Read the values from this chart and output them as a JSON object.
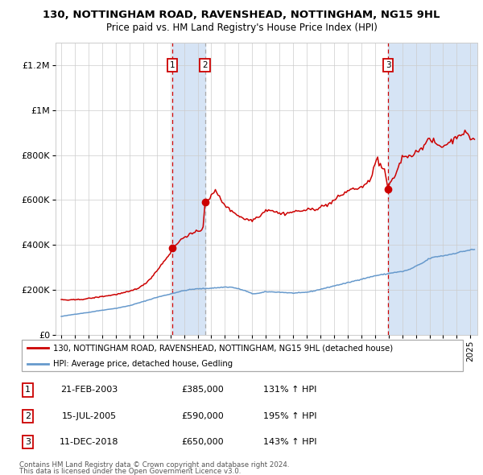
{
  "title": "130, NOTTINGHAM ROAD, RAVENSHEAD, NOTTINGHAM, NG15 9HL",
  "subtitle": "Price paid vs. HM Land Registry's House Price Index (HPI)",
  "legend_line1": "130, NOTTINGHAM ROAD, RAVENSHEAD, NOTTINGHAM, NG15 9HL (detached house)",
  "legend_line2": "HPI: Average price, detached house, Gedling",
  "footer1": "Contains HM Land Registry data © Crown copyright and database right 2024.",
  "footer2": "This data is licensed under the Open Government Licence v3.0.",
  "hpi_color": "#6699cc",
  "price_color": "#cc0000",
  "span_color": "#d6e4f5",
  "grid_color": "#cccccc",
  "plot_bg": "#ffffff",
  "transactions": [
    {
      "num": 1,
      "date": 2003.13,
      "price": 385000,
      "label": "21-FEB-2003",
      "pct": "131% ↑ HPI"
    },
    {
      "num": 2,
      "date": 2005.54,
      "price": 590000,
      "label": "15-JUL-2005",
      "pct": "195% ↑ HPI"
    },
    {
      "num": 3,
      "date": 2018.96,
      "price": 650000,
      "label": "11-DEC-2018",
      "pct": "143% ↑ HPI"
    }
  ],
  "ylim": [
    0,
    1300000
  ],
  "yticks": [
    0,
    200000,
    400000,
    600000,
    800000,
    1000000,
    1200000
  ],
  "ytick_labels": [
    "£0",
    "£200K",
    "£400K",
    "£600K",
    "£800K",
    "£1M",
    "£1.2M"
  ],
  "xlim_start": 1994.58,
  "xlim_end": 2025.5,
  "xticks": [
    1995,
    1996,
    1997,
    1998,
    1999,
    2000,
    2001,
    2002,
    2003,
    2004,
    2005,
    2006,
    2007,
    2008,
    2009,
    2010,
    2011,
    2012,
    2013,
    2014,
    2015,
    2016,
    2017,
    2018,
    2019,
    2020,
    2021,
    2022,
    2023,
    2024,
    2025
  ],
  "hpi_anchors": [
    [
      1995.0,
      82000
    ],
    [
      1996.0,
      92000
    ],
    [
      1997.0,
      100000
    ],
    [
      1998.0,
      110000
    ],
    [
      1999.0,
      118000
    ],
    [
      2000.0,
      130000
    ],
    [
      2001.0,
      148000
    ],
    [
      2002.0,
      167000
    ],
    [
      2003.0,
      182000
    ],
    [
      2003.5,
      190000
    ],
    [
      2004.0,
      197000
    ],
    [
      2004.5,
      202000
    ],
    [
      2005.0,
      205000
    ],
    [
      2005.5,
      206000
    ],
    [
      2006.0,
      208000
    ],
    [
      2006.5,
      210000
    ],
    [
      2007.0,
      213000
    ],
    [
      2007.5,
      212000
    ],
    [
      2008.0,
      205000
    ],
    [
      2008.5,
      196000
    ],
    [
      2009.0,
      183000
    ],
    [
      2009.5,
      185000
    ],
    [
      2010.0,
      192000
    ],
    [
      2010.5,
      191000
    ],
    [
      2011.0,
      190000
    ],
    [
      2011.5,
      188000
    ],
    [
      2012.0,
      186000
    ],
    [
      2012.5,
      187000
    ],
    [
      2013.0,
      190000
    ],
    [
      2013.5,
      195000
    ],
    [
      2014.0,
      203000
    ],
    [
      2014.5,
      210000
    ],
    [
      2015.0,
      218000
    ],
    [
      2015.5,
      225000
    ],
    [
      2016.0,
      232000
    ],
    [
      2016.5,
      240000
    ],
    [
      2017.0,
      248000
    ],
    [
      2017.5,
      255000
    ],
    [
      2018.0,
      263000
    ],
    [
      2018.5,
      268000
    ],
    [
      2018.96,
      272000
    ],
    [
      2019.0,
      274000
    ],
    [
      2019.5,
      278000
    ],
    [
      2020.0,
      282000
    ],
    [
      2020.5,
      290000
    ],
    [
      2021.0,
      305000
    ],
    [
      2021.5,
      320000
    ],
    [
      2022.0,
      340000
    ],
    [
      2022.5,
      348000
    ],
    [
      2023.0,
      352000
    ],
    [
      2023.5,
      358000
    ],
    [
      2024.0,
      365000
    ],
    [
      2024.5,
      372000
    ],
    [
      2025.0,
      378000
    ],
    [
      2025.3,
      380000
    ]
  ],
  "price_anchors": [
    [
      1995.0,
      157000
    ],
    [
      1995.5,
      155000
    ],
    [
      1996.0,
      156000
    ],
    [
      1996.5,
      158000
    ],
    [
      1997.0,
      162000
    ],
    [
      1997.5,
      166000
    ],
    [
      1998.0,
      171000
    ],
    [
      1998.5,
      175000
    ],
    [
      1999.0,
      180000
    ],
    [
      1999.5,
      186000
    ],
    [
      2000.0,
      193000
    ],
    [
      2000.5,
      205000
    ],
    [
      2001.0,
      220000
    ],
    [
      2001.5,
      248000
    ],
    [
      2002.0,
      285000
    ],
    [
      2002.5,
      325000
    ],
    [
      2003.0,
      365000
    ],
    [
      2003.13,
      385000
    ],
    [
      2003.5,
      405000
    ],
    [
      2003.8,
      425000
    ],
    [
      2004.0,
      435000
    ],
    [
      2004.3,
      445000
    ],
    [
      2004.6,
      450000
    ],
    [
      2004.8,
      455000
    ],
    [
      2005.0,
      458000
    ],
    [
      2005.2,
      465000
    ],
    [
      2005.4,
      480000
    ],
    [
      2005.54,
      590000
    ],
    [
      2005.7,
      600000
    ],
    [
      2005.9,
      610000
    ],
    [
      2006.1,
      625000
    ],
    [
      2006.3,
      640000
    ],
    [
      2006.5,
      625000
    ],
    [
      2006.7,
      600000
    ],
    [
      2007.0,
      580000
    ],
    [
      2007.3,
      558000
    ],
    [
      2007.7,
      545000
    ],
    [
      2008.0,
      530000
    ],
    [
      2008.5,
      515000
    ],
    [
      2009.0,
      510000
    ],
    [
      2009.3,
      522000
    ],
    [
      2009.7,
      538000
    ],
    [
      2010.0,
      555000
    ],
    [
      2010.3,
      558000
    ],
    [
      2010.7,
      548000
    ],
    [
      2011.0,
      540000
    ],
    [
      2011.3,
      540000
    ],
    [
      2011.7,
      543000
    ],
    [
      2012.0,
      548000
    ],
    [
      2012.3,
      550000
    ],
    [
      2012.7,
      553000
    ],
    [
      2013.0,
      555000
    ],
    [
      2013.3,
      558000
    ],
    [
      2013.7,
      562000
    ],
    [
      2014.0,
      568000
    ],
    [
      2014.3,
      575000
    ],
    [
      2014.7,
      585000
    ],
    [
      2015.0,
      598000
    ],
    [
      2015.3,
      612000
    ],
    [
      2015.7,
      628000
    ],
    [
      2016.0,
      642000
    ],
    [
      2016.3,
      648000
    ],
    [
      2016.7,
      652000
    ],
    [
      2017.0,
      657000
    ],
    [
      2017.3,
      665000
    ],
    [
      2017.6,
      685000
    ],
    [
      2017.8,
      720000
    ],
    [
      2018.0,
      755000
    ],
    [
      2018.1,
      778000
    ],
    [
      2018.2,
      790000
    ],
    [
      2018.3,
      758000
    ],
    [
      2018.5,
      742000
    ],
    [
      2018.7,
      735000
    ],
    [
      2018.96,
      650000
    ],
    [
      2019.0,
      658000
    ],
    [
      2019.2,
      678000
    ],
    [
      2019.4,
      700000
    ],
    [
      2019.6,
      728000
    ],
    [
      2019.8,
      758000
    ],
    [
      2020.0,
      790000
    ],
    [
      2020.3,
      800000
    ],
    [
      2020.5,
      795000
    ],
    [
      2020.7,
      800000
    ],
    [
      2021.0,
      812000
    ],
    [
      2021.3,
      828000
    ],
    [
      2021.6,
      845000
    ],
    [
      2021.8,
      858000
    ],
    [
      2022.0,
      868000
    ],
    [
      2022.3,
      860000
    ],
    [
      2022.6,
      845000
    ],
    [
      2022.9,
      838000
    ],
    [
      2023.0,
      840000
    ],
    [
      2023.3,
      852000
    ],
    [
      2023.6,
      862000
    ],
    [
      2023.9,
      875000
    ],
    [
      2024.0,
      885000
    ],
    [
      2024.3,
      895000
    ],
    [
      2024.6,
      900000
    ],
    [
      2024.8,
      888000
    ],
    [
      2025.0,
      875000
    ],
    [
      2025.2,
      872000
    ],
    [
      2025.3,
      870000
    ]
  ]
}
